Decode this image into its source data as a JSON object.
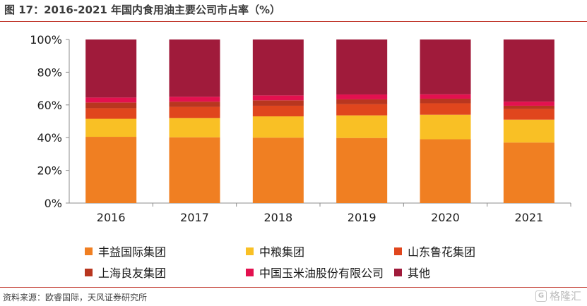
{
  "header": {
    "title": "图 17：2016-2021 年国内食用油主要公司市占率（%）"
  },
  "footer": {
    "source": "资料来源：欧睿国际，天风证券研究所",
    "watermark": "格隆汇",
    "watermark_glyph": "G"
  },
  "chart_data": {
    "type": "bar",
    "stacked": true,
    "percent": true,
    "title": "图 17：2016-2021 年国内食用油主要公司市占率（%）",
    "xlabel": "",
    "ylabel": "",
    "ylim": [
      0,
      100
    ],
    "yticks": [
      "0%",
      "20%",
      "40%",
      "60%",
      "80%",
      "100%"
    ],
    "grid": false,
    "legend_position": "bottom",
    "categories": [
      "2016",
      "2017",
      "2018",
      "2019",
      "2020",
      "2021"
    ],
    "series": [
      {
        "name": "丰益国际集团",
        "color": "#f07f22",
        "values": [
          40.5,
          40.2,
          40.0,
          39.8,
          39.0,
          37.0
        ]
      },
      {
        "name": "中粮集团",
        "color": "#f9c025",
        "values": [
          11.0,
          11.8,
          13.0,
          13.8,
          15.0,
          14.0
        ]
      },
      {
        "name": "山东鲁花集团",
        "color": "#e0461d",
        "values": [
          6.5,
          6.8,
          6.5,
          6.8,
          7.0,
          6.5
        ]
      },
      {
        "name": "上海良友集团",
        "color": "#b8361f",
        "values": [
          3.5,
          3.2,
          3.3,
          3.0,
          2.8,
          2.0
        ]
      },
      {
        "name": "中国玉米油股份有限公司",
        "color": "#e3114f",
        "values": [
          3.0,
          3.0,
          3.0,
          3.0,
          2.7,
          2.5
        ]
      },
      {
        "name": "其他",
        "color": "#a01b3b",
        "values": [
          35.5,
          35.0,
          34.2,
          33.6,
          33.5,
          38.0
        ]
      }
    ]
  }
}
